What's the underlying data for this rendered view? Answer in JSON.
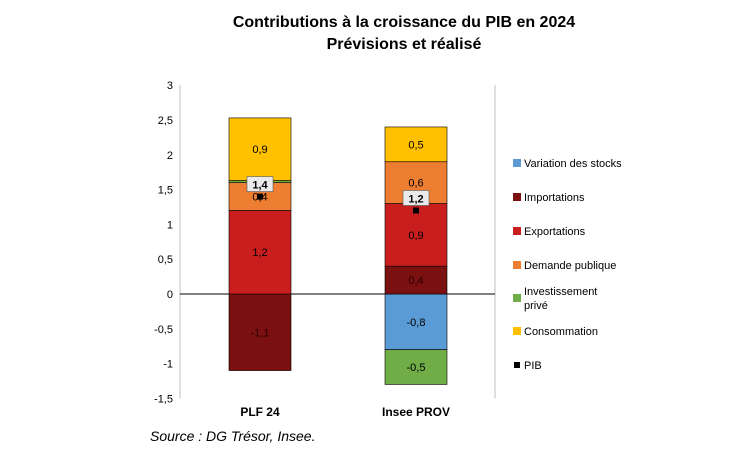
{
  "chart_data": {
    "type": "bar",
    "stacked": true,
    "title": "Contributions à la croissance du PIB en 2024",
    "subtitle": "Prévisions et réalisé",
    "source": "Source : DG Trésor, Insee.",
    "categories": [
      "PLF 24",
      "Insee PROV"
    ],
    "y_ticks": [
      "-1,5",
      "-1",
      "-0,5",
      "0",
      "0,5",
      "1",
      "1,5",
      "2",
      "2,5",
      "3"
    ],
    "ylim": [
      -1.5,
      3
    ],
    "series": [
      {
        "name": "Variation des stocks",
        "color": "#5B9BD5",
        "values": [
          0,
          -0.8
        ],
        "labels": [
          "",
          "-0,8"
        ]
      },
      {
        "name": "Importations",
        "color": "#7B1010",
        "values": [
          -1.1,
          0.4
        ],
        "labels": [
          "-1,1",
          "0,4"
        ]
      },
      {
        "name": "Exportations",
        "color": "#C81E1E",
        "values": [
          1.2,
          0.9
        ],
        "labels": [
          "1,2",
          "0,9"
        ]
      },
      {
        "name": "Demande publique",
        "color": "#ED7D31",
        "values": [
          0.4,
          0.6
        ],
        "labels": [
          "0,4",
          "0,6"
        ]
      },
      {
        "name": "Investissement privé",
        "color": "#70AD47",
        "values": [
          0.03,
          -0.5
        ],
        "labels": [
          "",
          "-0,5"
        ]
      },
      {
        "name": "Consommation",
        "color": "#FFC000",
        "values": [
          0.9,
          0.5
        ],
        "labels": [
          "0,9",
          "0,5"
        ]
      }
    ],
    "pib": {
      "name": "PIB",
      "color": "#000000",
      "values": [
        1.4,
        1.2
      ],
      "labels": [
        "1,4",
        "1,2"
      ]
    },
    "legend_position": "right"
  }
}
